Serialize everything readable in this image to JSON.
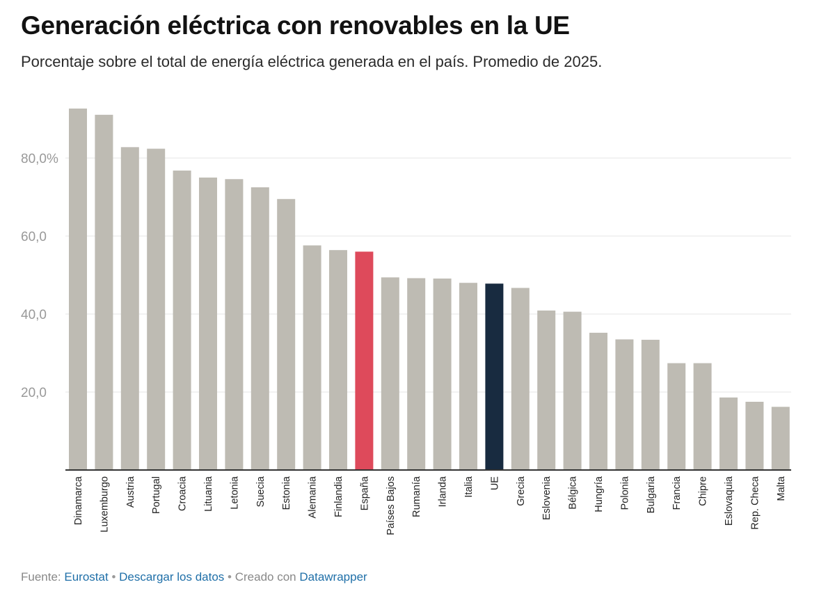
{
  "header": {
    "title": "Generación eléctrica con renovables en la UE",
    "subtitle": "Porcentaje sobre el total de energía eléctrica generada en el país. Promedio de 2025."
  },
  "footer": {
    "source_prefix": "Fuente:",
    "source_link": "Eurostat",
    "separator": "•",
    "download_link": "Descargar los datos",
    "created_prefix": "Creado con",
    "created_link": "Datawrapper"
  },
  "colors": {
    "default_bar": "#bebbb3",
    "highlight_spain": "#de4a5b",
    "highlight_eu": "#182b40",
    "grid": "#e4e4e4",
    "axis": "#333333",
    "tick_label": "#999999"
  },
  "chart_data": {
    "type": "bar",
    "title": "Generación eléctrica con renovables en la UE",
    "subtitle": "Porcentaje sobre el total de energía eléctrica generada en el país. Promedio de 2025.",
    "xlabel": "",
    "ylabel": "",
    "ylim": [
      0,
      95
    ],
    "yticks": [
      20,
      40,
      60,
      80
    ],
    "ytick_labels": [
      "20,0",
      "40,0",
      "60,0",
      "80,0%"
    ],
    "grid": true,
    "categories": [
      "Dinamarca",
      "Luxemburgo",
      "Austria",
      "Portugal",
      "Croacia",
      "Lituania",
      "Letonia",
      "Suecia",
      "Estonia",
      "Alemania",
      "Finlandia",
      "España",
      "Países Bajos",
      "Rumanía",
      "Irlanda",
      "Italia",
      "UE",
      "Grecia",
      "Eslovenia",
      "Bélgica",
      "Hungría",
      "Polonia",
      "Bulgaria",
      "Francia",
      "Chipre",
      "Eslovaquia",
      "Rep. Checa",
      "Malta"
    ],
    "values": [
      92.7,
      91.1,
      82.8,
      82.4,
      76.8,
      75.0,
      74.6,
      72.5,
      69.5,
      57.6,
      56.4,
      56.0,
      49.4,
      49.2,
      49.1,
      48.0,
      47.8,
      46.7,
      40.9,
      40.6,
      35.2,
      33.5,
      33.4,
      27.4,
      27.4,
      18.6,
      17.5,
      16.2
    ],
    "highlights": {
      "España": "highlight_spain",
      "UE": "highlight_eu"
    }
  }
}
